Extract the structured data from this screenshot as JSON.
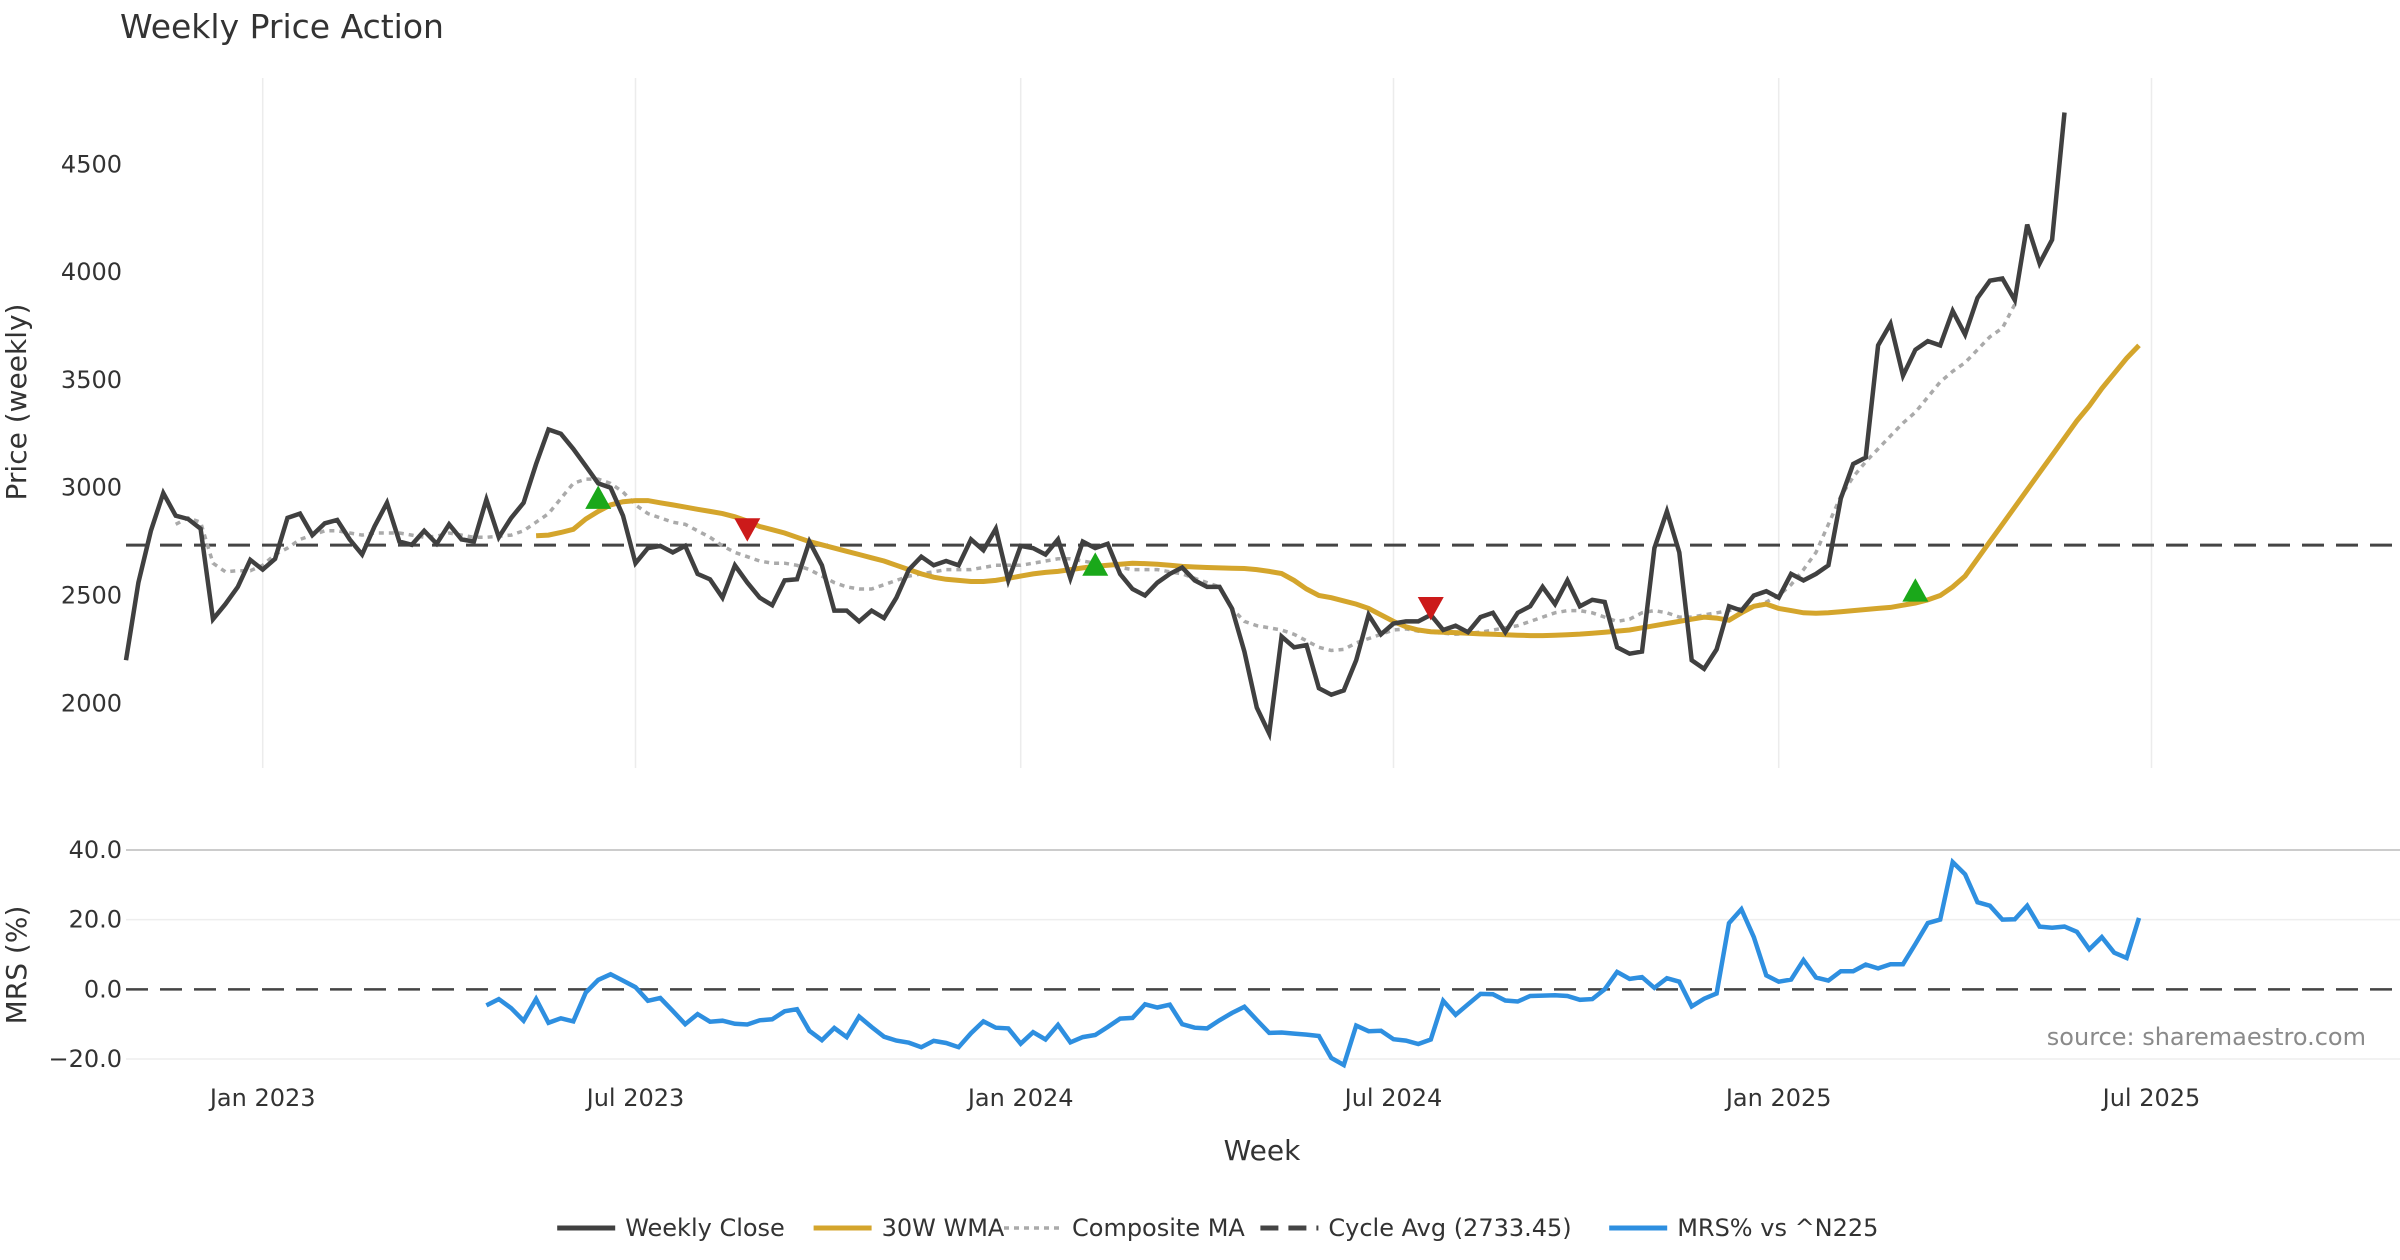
{
  "chart_data": [
    {
      "type": "line",
      "title": "Weekly Price Action",
      "ylabel": "Price (weekly)",
      "xlabel": "",
      "ylim": [
        1700,
        4900
      ],
      "yticks": [
        2000,
        2500,
        3000,
        3500,
        4000,
        4500
      ],
      "x_week_range": [
        0,
        183
      ],
      "x_gridlines_weeks": [
        11,
        41,
        72,
        102,
        133,
        163
      ],
      "series": [
        {
          "name": "Weekly Close",
          "color": "#404040",
          "values": [
            2200,
            2560,
            2800,
            2975,
            2870,
            2855,
            2810,
            2390,
            2460,
            2540,
            2665,
            2620,
            2670,
            2860,
            2880,
            2780,
            2835,
            2850,
            2760,
            2690,
            2820,
            2930,
            2750,
            2735,
            2800,
            2740,
            2830,
            2760,
            2750,
            2945,
            2770,
            2860,
            2930,
            3110,
            3270,
            3250,
            3180,
            3100,
            3020,
            3000,
            2870,
            2650,
            2720,
            2730,
            2700,
            2730,
            2600,
            2575,
            2490,
            2640,
            2560,
            2490,
            2455,
            2570,
            2575,
            2750,
            2640,
            2430,
            2430,
            2380,
            2430,
            2395,
            2490,
            2620,
            2680,
            2640,
            2660,
            2640,
            2760,
            2710,
            2810,
            2570,
            2730,
            2720,
            2690,
            2760,
            2580,
            2750,
            2720,
            2740,
            2600,
            2530,
            2500,
            2560,
            2600,
            2630,
            2570,
            2540,
            2540,
            2440,
            2240,
            1980,
            1860,
            2310,
            2260,
            2270,
            2070,
            2040,
            2060,
            2200,
            2410,
            2320,
            2370,
            2380,
            2380,
            2410,
            2340,
            2360,
            2330,
            2400,
            2420,
            2330,
            2420,
            2450,
            2540,
            2460,
            2570,
            2450,
            2480,
            2470,
            2260,
            2230,
            2240,
            2720,
            2890,
            2700,
            2200,
            2160,
            2250,
            2450,
            2430,
            2500,
            2520,
            2490,
            2600,
            2570,
            2600,
            2640,
            2950,
            3110,
            3140,
            3660,
            3760,
            3520,
            3640,
            3680,
            3660,
            3820,
            3710,
            3880,
            3960,
            3970,
            3870,
            4220,
            4040,
            4150,
            4740
          ]
        },
        {
          "name": "30W WMA",
          "color": "#d4a52c",
          "start_week": 33,
          "values": [
            2777,
            2780,
            2792,
            2807,
            2855,
            2890,
            2920,
            2935,
            2940,
            2940,
            2930,
            2920,
            2910,
            2900,
            2890,
            2880,
            2865,
            2845,
            2820,
            2805,
            2790,
            2770,
            2750,
            2735,
            2720,
            2705,
            2690,
            2675,
            2660,
            2640,
            2620,
            2600,
            2585,
            2575,
            2570,
            2565,
            2565,
            2570,
            2580,
            2590,
            2600,
            2607,
            2612,
            2620,
            2628,
            2635,
            2640,
            2645,
            2650,
            2648,
            2645,
            2640,
            2635,
            2632,
            2630,
            2628,
            2626,
            2625,
            2620,
            2612,
            2602,
            2570,
            2530,
            2500,
            2490,
            2475,
            2460,
            2440,
            2410,
            2380,
            2355,
            2340,
            2332,
            2330,
            2328,
            2325,
            2322,
            2320,
            2318,
            2316,
            2314,
            2314,
            2316,
            2318,
            2321,
            2325,
            2330,
            2335,
            2340,
            2350,
            2360,
            2370,
            2380,
            2390,
            2400,
            2395,
            2385,
            2420,
            2450,
            2460,
            2440,
            2430,
            2420,
            2418,
            2420,
            2425,
            2430,
            2435,
            2440,
            2445,
            2455,
            2465,
            2480,
            2500,
            2540,
            2590,
            2670,
            2750,
            2830,
            2910,
            2990,
            3070,
            3150,
            3230,
            3310,
            3380,
            3460,
            3530,
            3600,
            3660
          ]
        },
        {
          "name": "Composite MA",
          "color": "#aaaaaa",
          "start_week": 4,
          "values": [
            2830,
            2860,
            2840,
            2650,
            2610,
            2615,
            2615,
            2640,
            2690,
            2720,
            2760,
            2780,
            2800,
            2800,
            2790,
            2780,
            2790,
            2790,
            2790,
            2780,
            2770,
            2775,
            2790,
            2780,
            2770,
            2770,
            2775,
            2780,
            2800,
            2840,
            2880,
            2950,
            3020,
            3040,
            3040,
            3020,
            2980,
            2920,
            2880,
            2860,
            2840,
            2830,
            2800,
            2770,
            2730,
            2700,
            2680,
            2660,
            2650,
            2650,
            2640,
            2620,
            2590,
            2560,
            2540,
            2530,
            2530,
            2550,
            2570,
            2590,
            2600,
            2610,
            2620,
            2620,
            2620,
            2630,
            2640,
            2640,
            2640,
            2650,
            2660,
            2670,
            2670,
            2660,
            2650,
            2640,
            2630,
            2620,
            2620,
            2620,
            2610,
            2600,
            2580,
            2560,
            2540,
            2440,
            2380,
            2360,
            2350,
            2340,
            2320,
            2290,
            2260,
            2245,
            2250,
            2280,
            2300,
            2320,
            2340,
            2345,
            2335,
            2330,
            2325,
            2320,
            2325,
            2330,
            2340,
            2350,
            2360,
            2380,
            2400,
            2420,
            2430,
            2430,
            2420,
            2400,
            2380,
            2390,
            2420,
            2430,
            2420,
            2400,
            2400,
            2410,
            2420,
            2430,
            2440,
            2450,
            2470,
            2500,
            2550,
            2620,
            2700,
            2830,
            2960,
            3050,
            3120,
            3180,
            3240,
            3300,
            3350,
            3420,
            3490,
            3540,
            3580,
            3640,
            3700,
            3740,
            3850
          ]
        },
        {
          "name": "Cycle Avg (2733.45)",
          "color": "#444444",
          "constant": 2733.45
        }
      ],
      "markers": [
        {
          "kind": "buy",
          "week": 38,
          "value": 2950,
          "color": "#1aa81a"
        },
        {
          "kind": "sell",
          "week": 50,
          "value": 2810,
          "color": "#cc1a1a"
        },
        {
          "kind": "buy",
          "week": 78,
          "value": 2640,
          "color": "#1aa81a"
        },
        {
          "kind": "sell",
          "week": 105,
          "value": 2445,
          "color": "#cc1a1a"
        },
        {
          "kind": "buy",
          "week": 144,
          "value": 2520,
          "color": "#1aa81a"
        }
      ]
    },
    {
      "type": "line",
      "title": "",
      "ylabel": "MRS (%)",
      "xlabel": "Week",
      "ylim": [
        -22,
        44
      ],
      "yticks": [
        -20.0,
        0.0,
        20.0,
        40.0
      ],
      "ytick_labels": [
        "−20.0",
        "0.0",
        "20.0",
        "40.0"
      ],
      "x_week_range": [
        0,
        183
      ],
      "x_tick_weeks": [
        11,
        41,
        72,
        102,
        133,
        163
      ],
      "x_tick_labels": [
        "Jan 2023",
        "Jul 2023",
        "Jan 2024",
        "Jul 2024",
        "Jan 2025",
        "Jul 2025"
      ],
      "zero_line": 0,
      "series": [
        {
          "name": "MRS% vs ^N225",
          "color": "#2e8fe0",
          "start_week": 29,
          "values": [
            -4.6,
            -2.8,
            -5.4,
            -9.0,
            -2.8,
            -9.6,
            -8.3,
            -9.2,
            -0.9,
            2.7,
            4.3,
            2.5,
            0.6,
            -3.3,
            -2.5,
            -6.2,
            -10.0,
            -7.1,
            -9.3,
            -9.0,
            -9.9,
            -10.1,
            -8.9,
            -8.6,
            -6.3,
            -5.7,
            -11.9,
            -14.6,
            -11.1,
            -13.7,
            -7.8,
            -10.8,
            -13.6,
            -14.7,
            -15.3,
            -16.6,
            -14.8,
            -15.4,
            -16.6,
            -12.6,
            -9.2,
            -11.0,
            -11.2,
            -15.6,
            -12.3,
            -14.4,
            -10.2,
            -15.2,
            -13.7,
            -13.1,
            -10.8,
            -8.4,
            -8.2,
            -4.3,
            -5.2,
            -4.4,
            -10.0,
            -11.0,
            -11.2,
            -8.9,
            -6.8,
            -5.0,
            -8.8,
            -12.5,
            -12.4,
            -12.7,
            -13.0,
            -13.4,
            -19.7,
            -21.7,
            -10.4,
            -12.0,
            -11.9,
            -14.3,
            -14.7,
            -15.7,
            -14.4,
            -3.3,
            -7.3,
            -4.3,
            -1.3,
            -1.4,
            -3.2,
            -3.5,
            -1.9,
            -1.8,
            -1.7,
            -1.9,
            -3.0,
            -2.8,
            0.0,
            5.0,
            3.0,
            3.5,
            0.4,
            3.2,
            2.2,
            -4.9,
            -2.7,
            -1.2,
            19.0,
            23.0,
            15.0,
            4.0,
            2.2,
            2.8,
            8.4,
            3.4,
            2.5,
            5.2,
            5.2,
            7.1,
            6.0,
            7.2,
            7.2,
            13.0,
            19.0,
            20.0,
            36.5,
            33.0,
            25.0,
            24.0,
            20.0,
            20.1,
            24.0,
            18.0,
            17.7,
            18.0,
            16.5,
            11.5,
            15.0,
            10.5,
            9.0,
            20.5
          ]
        }
      ]
    }
  ],
  "legend": [
    {
      "label": "Weekly Close",
      "color": "#404040",
      "style": "solid"
    },
    {
      "label": "30W WMA",
      "color": "#d4a52c",
      "style": "solid"
    },
    {
      "label": "Composite MA",
      "color": "#aaaaaa",
      "style": "dotted"
    },
    {
      "label": "Cycle Avg (2733.45)",
      "color": "#444444",
      "style": "dashed"
    },
    {
      "label": "MRS% vs ^N225",
      "color": "#2e8fe0",
      "style": "solid"
    }
  ],
  "source_text": "source: sharemaestro.com"
}
